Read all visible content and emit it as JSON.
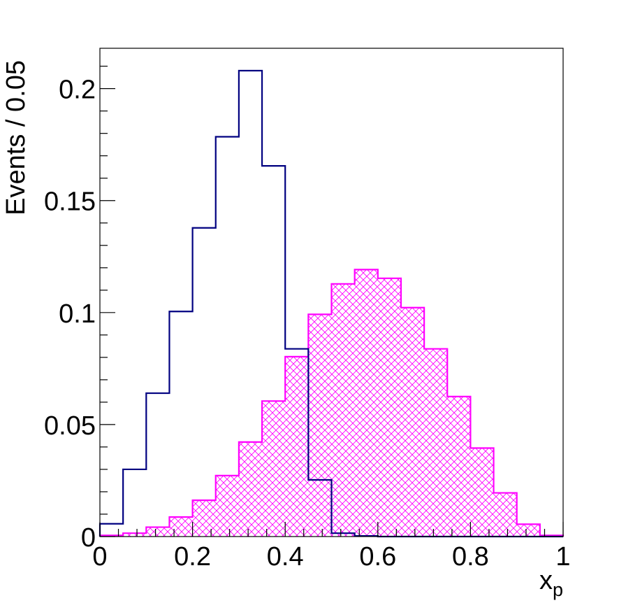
{
  "chart_data": {
    "type": "histogram",
    "xlabel_main": "x",
    "xlabel_sub": "p",
    "ylabel": "Events / 0.05",
    "xlim": [
      0,
      1
    ],
    "ylim": [
      0,
      0.218
    ],
    "bin_width": 0.05,
    "bin_edges": [
      0,
      0.05,
      0.1,
      0.15,
      0.2,
      0.25,
      0.3,
      0.35,
      0.4,
      0.45,
      0.5,
      0.55,
      0.6,
      0.65,
      0.7,
      0.75,
      0.8,
      0.85,
      0.9,
      0.95,
      1.0
    ],
    "x_ticks": [
      {
        "value": 0,
        "label": "0"
      },
      {
        "value": 0.2,
        "label": "0.2"
      },
      {
        "value": 0.4,
        "label": "0.4"
      },
      {
        "value": 0.6,
        "label": "0.6"
      },
      {
        "value": 0.8,
        "label": "0.8"
      },
      {
        "value": 1,
        "label": "1"
      }
    ],
    "y_ticks": [
      {
        "value": 0,
        "label": "0"
      },
      {
        "value": 0.05,
        "label": "0.05"
      },
      {
        "value": 0.1,
        "label": "0.1"
      },
      {
        "value": 0.15,
        "label": "0.15"
      },
      {
        "value": 0.2,
        "label": "0.2"
      }
    ],
    "series": [
      {
        "color": "#000080",
        "fill": "none",
        "values": [
          0.0057,
          0.03,
          0.064,
          0.1005,
          0.1378,
          0.1785,
          0.208,
          0.1655,
          0.0838,
          0.0253,
          0.0015,
          0.0003,
          0,
          0,
          0,
          0,
          0,
          0,
          0,
          0
        ]
      },
      {
        "color": "#ff00ff",
        "fill": "crosshatch",
        "values": [
          0.0005,
          0.0015,
          0.0042,
          0.0087,
          0.0162,
          0.0272,
          0.0422,
          0.0605,
          0.0803,
          0.0992,
          0.1128,
          0.1192,
          0.1153,
          0.1022,
          0.0838,
          0.0625,
          0.0395,
          0.0195,
          0.0055,
          0.0005
        ]
      }
    ]
  }
}
